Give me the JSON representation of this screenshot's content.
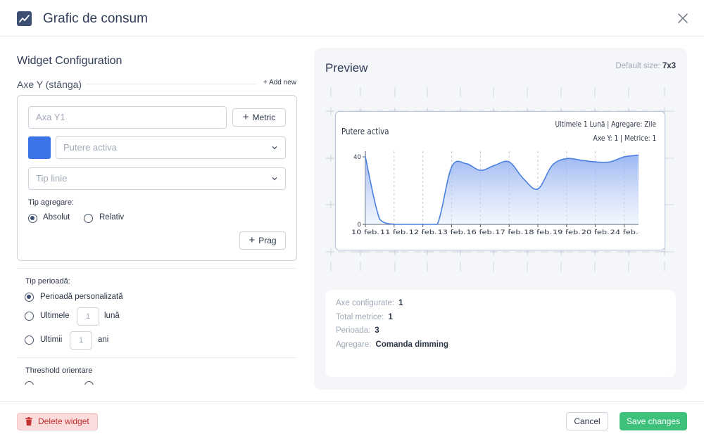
{
  "header": {
    "title": "Grafic de consum",
    "icon": "line-chart-icon"
  },
  "config": {
    "title": "Widget Configuration",
    "axe_label": "Axe Y (stânga)",
    "add_new": "+ Add new",
    "axis_input_placeholder": "Axa Y1",
    "metric_button": "Metric",
    "color_swatch": "#3b74e6",
    "metric_select_placeholder": "Putere activa",
    "line_type_placeholder": "Tip linie",
    "aggregation_label": "Tip agregare:",
    "aggregation_options": [
      {
        "label": "Absolut",
        "checked": true
      },
      {
        "label": "Relativ",
        "checked": false
      }
    ],
    "threshold_button": "Prag",
    "period_label": "Tip perioadă:",
    "period_custom": "Perioadă personalizată",
    "period_last": "Ultimele",
    "period_last_value": "1",
    "period_last_unit": "lună",
    "period_years": "Ultimii",
    "period_years_value": "1",
    "period_years_unit": "ani",
    "threshold_label": "Threshold orientare"
  },
  "preview": {
    "title": "Preview",
    "default_size_label": "Default size:",
    "default_size_value": "7x3",
    "widget_title": "Putere activa",
    "widget_meta1": "Ultimele 1 Lună | Agregare: Zile",
    "widget_meta2": "Axe Y: 1 | Metrice: 1",
    "stats": [
      {
        "label": "Axe configurate:",
        "value": "1"
      },
      {
        "label": "Total metrice:",
        "value": "1"
      },
      {
        "label": "Perioada:",
        "value": "3"
      },
      {
        "label": "Agregare:",
        "value": "Comanda dimming"
      }
    ]
  },
  "chart_data": {
    "type": "area",
    "title": "Putere activa",
    "xlabel": "",
    "ylabel": "",
    "ylim": [
      0,
      40
    ],
    "y_ticks": [
      "0",
      "40"
    ],
    "categories": [
      "10 feb.",
      "11 feb.",
      "12 feb.",
      "13 feb.",
      "16 feb.",
      "17 feb.",
      "18 feb.",
      "19 feb.",
      "20 feb.",
      "24 feb."
    ],
    "x": [
      0,
      0.5,
      1,
      1.5,
      2,
      2.5,
      3,
      3.5,
      4,
      4.5,
      5,
      5.5,
      6,
      6.5,
      7,
      7.5,
      8,
      8.5,
      9,
      9.5
    ],
    "values": [
      40,
      3,
      0,
      0,
      0,
      0,
      34,
      36,
      32,
      35,
      37,
      27,
      21,
      35,
      39,
      38,
      37,
      37,
      40,
      41
    ],
    "color": "#4a7fe0",
    "grid": true
  },
  "footer": {
    "delete_label": "Delete widget",
    "cancel_label": "Cancel",
    "save_label": "Save changes"
  }
}
